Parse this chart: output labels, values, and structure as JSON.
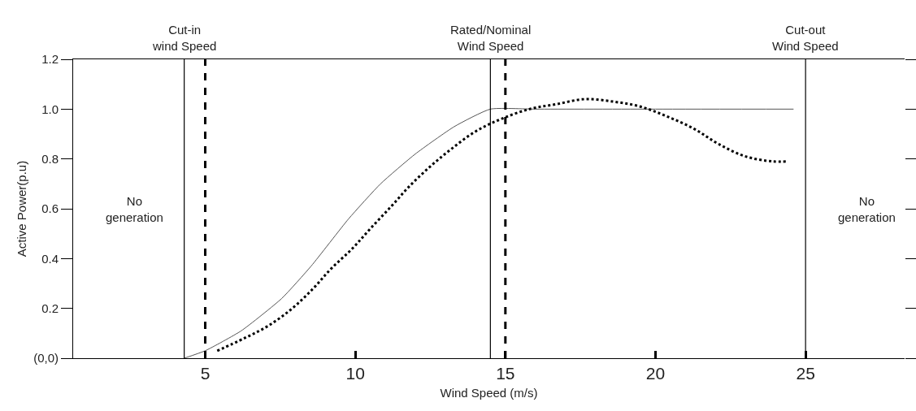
{
  "chart_data": {
    "type": "line",
    "xlabel": "Wind Speed (m/s)",
    "ylabel": "Active Power(p.u)",
    "xlim": [
      0.6,
      28.3
    ],
    "xticks": [
      5,
      10,
      15,
      20,
      25
    ],
    "ylim": [
      0,
      1.2
    ],
    "yticks": [
      {
        "value": 0,
        "label": "(0,0)"
      },
      0.2,
      0.4,
      0.6,
      0.8,
      {
        "value": 1,
        "label": "1.0"
      },
      1.2
    ],
    "series": [
      {
        "color": "#555555",
        "line_style": "solid",
        "marker": "none",
        "x": [
          4.3,
          5,
          6.2,
          7.55,
          8.53,
          9.78,
          10.84,
          12.0,
          13.3,
          14.5,
          16,
          20,
          24.6
        ],
        "values": [
          0,
          0.03,
          0.11,
          0.24,
          0.37,
          0.56,
          0.7,
          0.82,
          0.93,
          1.0,
          1.0,
          1.0,
          1.0
        ]
      },
      {
        "color": "#000000",
        "line_style": "dotted",
        "marker": "none",
        "x": [
          5.4,
          6.3,
          7.1,
          7.9,
          8.6,
          9.2,
          9.9,
          10.5,
          11.2,
          11.8,
          12.5,
          13.2,
          14.0,
          14.85,
          15.8,
          16.7,
          17.65,
          18.6,
          19.5,
          20.4,
          21.3,
          22.1,
          23.0,
          23.9,
          24.4
        ],
        "values": [
          0.03,
          0.08,
          0.13,
          0.2,
          0.28,
          0.36,
          0.44,
          0.52,
          0.61,
          0.69,
          0.77,
          0.84,
          0.91,
          0.96,
          1.0,
          1.02,
          1.04,
          1.03,
          1.01,
          0.97,
          0.92,
          0.86,
          0.81,
          0.79,
          0.79
        ]
      }
    ],
    "ref_lines": [
      {
        "axis": "x",
        "value": 4.3,
        "label": "Cut-in\nwind Speed",
        "color": "#000000",
        "line_style": "solid"
      },
      {
        "axis": "x",
        "value": 14.5,
        "label": "Rated/Nominal\nWind Speed",
        "color": "#000000",
        "line_style": "solid"
      },
      {
        "axis": "x",
        "value": 25,
        "label": "Cut-out\nWind Speed",
        "color": "#000000",
        "line_style": "solid"
      },
      {
        "axis": "x",
        "value": 5,
        "color": "#000000",
        "line_style": "dashed"
      },
      {
        "axis": "x",
        "value": 15,
        "color": "#000000",
        "line_style": "dashed"
      }
    ],
    "annotations": [
      "No\ngeneration",
      "No\ngeneration"
    ]
  }
}
